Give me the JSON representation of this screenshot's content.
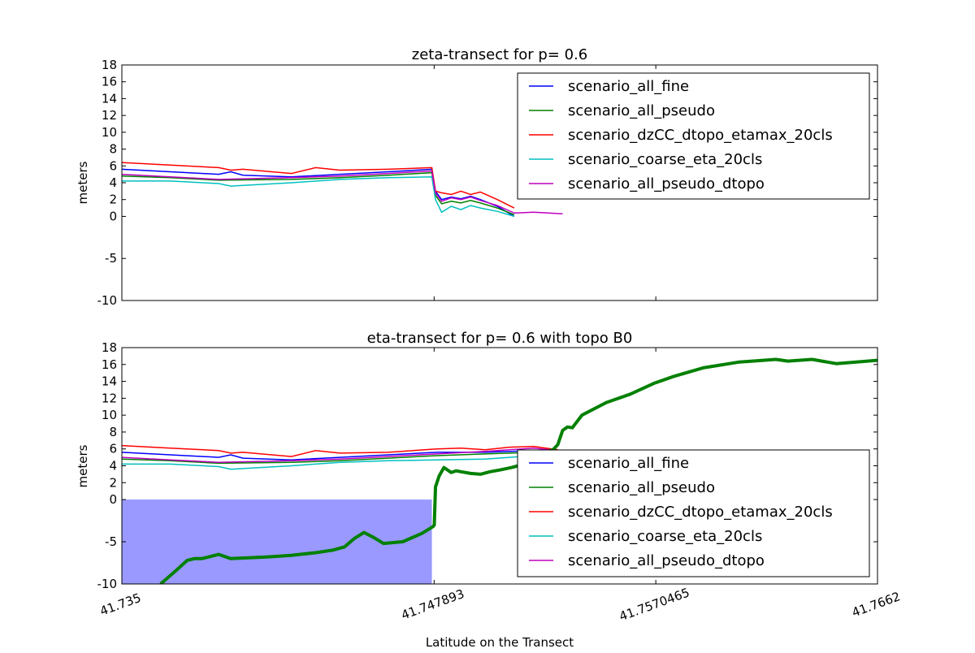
{
  "chart_data": [
    {
      "type": "line",
      "title": "zeta-transect for p= 0.6",
      "ylabel": "meters",
      "xlim": [
        41.735,
        41.7662
      ],
      "ylim": [
        -10,
        18
      ],
      "yticks": [
        "-10",
        "-5",
        "0",
        "2",
        "4",
        "6",
        "8",
        "10",
        "12",
        "14",
        "16",
        "18"
      ],
      "ytick_values": [
        -10,
        -5,
        0,
        2,
        4,
        6,
        8,
        10,
        12,
        14,
        16,
        18
      ],
      "xtick_values": [
        41.735,
        41.747893,
        41.7570465,
        41.7662
      ],
      "legend": "top-right",
      "colors": [
        "#0000ff",
        "#008000",
        "#ff0000",
        "#00bfbf",
        "#bf00bf"
      ],
      "series": [
        {
          "name": "scenario_all_fine",
          "x": [
            41.735,
            41.737,
            41.739,
            41.7395,
            41.74,
            41.742,
            41.744,
            41.746,
            41.7478,
            41.74795,
            41.7482,
            41.7486,
            41.749,
            41.7494,
            41.7498,
            41.7505,
            41.7512
          ],
          "y": [
            5.6,
            5.3,
            5.0,
            5.3,
            4.9,
            4.7,
            5.0,
            5.3,
            5.6,
            3.0,
            2.0,
            2.3,
            2.1,
            2.4,
            2.0,
            1.2,
            0.0
          ]
        },
        {
          "name": "scenario_all_pseudo",
          "x": [
            41.735,
            41.737,
            41.739,
            41.742,
            41.744,
            41.746,
            41.7478,
            41.74795,
            41.7482,
            41.7486,
            41.749,
            41.7494,
            41.7498,
            41.7505,
            41.7512
          ],
          "y": [
            4.8,
            4.6,
            4.3,
            4.4,
            4.6,
            4.9,
            5.2,
            2.5,
            1.5,
            1.8,
            1.6,
            1.9,
            1.6,
            1.0,
            0.2
          ]
        },
        {
          "name": "scenario_dzCC_dtopo_etamax_20cls",
          "x": [
            41.735,
            41.737,
            41.739,
            41.7395,
            41.74,
            41.742,
            41.743,
            41.744,
            41.746,
            41.7478,
            41.74795,
            41.7482,
            41.7486,
            41.749,
            41.7494,
            41.7498,
            41.7505,
            41.7512
          ],
          "y": [
            6.4,
            6.1,
            5.8,
            5.5,
            5.6,
            5.1,
            5.8,
            5.5,
            5.6,
            5.8,
            3.0,
            2.8,
            2.6,
            3.0,
            2.6,
            2.9,
            2.0,
            1.0
          ]
        },
        {
          "name": "scenario_coarse_eta_20cls",
          "x": [
            41.735,
            41.737,
            41.739,
            41.7395,
            41.742,
            41.744,
            41.746,
            41.7478,
            41.74795,
            41.7482,
            41.7486,
            41.749,
            41.7494,
            41.7498,
            41.7505,
            41.7512
          ],
          "y": [
            4.2,
            4.2,
            3.9,
            3.6,
            4.0,
            4.4,
            4.6,
            4.7,
            2.0,
            0.5,
            1.2,
            0.8,
            1.3,
            1.0,
            0.6,
            0.0
          ]
        },
        {
          "name": "scenario_all_pseudo_dtopo",
          "x": [
            41.735,
            41.737,
            41.739,
            41.742,
            41.744,
            41.746,
            41.7478,
            41.74795,
            41.7482,
            41.7486,
            41.749,
            41.7494,
            41.7498,
            41.7505,
            41.7512,
            41.752,
            41.7532
          ],
          "y": [
            5.0,
            4.7,
            4.4,
            4.6,
            4.8,
            5.1,
            5.4,
            2.8,
            1.8,
            2.2,
            2.0,
            2.3,
            1.9,
            1.3,
            0.4,
            0.5,
            0.3
          ]
        }
      ]
    },
    {
      "type": "line",
      "title": "eta-transect for p= 0.6 with topo B0",
      "ylabel": "meters",
      "xlabel": "Latitude on the Transect",
      "xticks": [
        "41.735",
        "41.747893",
        "41.7570465",
        "41.7662"
      ],
      "xtick_values": [
        41.735,
        41.747893,
        41.7570465,
        41.7662
      ],
      "xlim": [
        41.735,
        41.7662
      ],
      "ylim": [
        -10,
        18
      ],
      "yticks": [
        "-10",
        "-5",
        "0",
        "2",
        "4",
        "6",
        "8",
        "10",
        "12",
        "14",
        "16",
        "18"
      ],
      "ytick_values": [
        -10,
        -5,
        0,
        2,
        4,
        6,
        8,
        10,
        12,
        14,
        16,
        18
      ],
      "legend": "bottom-right",
      "colors": [
        "#0000ff",
        "#008000",
        "#ff0000",
        "#00bfbf",
        "#bf00bf"
      ],
      "shade_color": "#9999ff",
      "topo_color": "#008000",
      "series": [
        {
          "name": "scenario_all_fine",
          "x": [
            41.735,
            41.737,
            41.739,
            41.7395,
            41.74,
            41.742,
            41.744,
            41.746,
            41.748,
            41.75,
            41.752,
            41.753
          ],
          "y": [
            5.6,
            5.3,
            5.0,
            5.3,
            4.9,
            4.7,
            5.0,
            5.3,
            5.6,
            5.6,
            5.8,
            5.8
          ]
        },
        {
          "name": "scenario_all_pseudo",
          "x": [
            41.735,
            41.737,
            41.739,
            41.742,
            41.744,
            41.746,
            41.748,
            41.75,
            41.752,
            41.753
          ],
          "y": [
            4.8,
            4.6,
            4.3,
            4.4,
            4.6,
            4.9,
            5.2,
            5.4,
            5.6,
            5.6
          ]
        },
        {
          "name": "scenario_dzCC_dtopo_etamax_20cls",
          "x": [
            41.735,
            41.737,
            41.739,
            41.7395,
            41.74,
            41.742,
            41.743,
            41.744,
            41.746,
            41.748,
            41.749,
            41.75,
            41.751,
            41.752,
            41.753
          ],
          "y": [
            6.4,
            6.1,
            5.8,
            5.5,
            5.6,
            5.1,
            5.8,
            5.5,
            5.6,
            6.0,
            6.1,
            5.9,
            6.2,
            6.3,
            5.9
          ]
        },
        {
          "name": "scenario_coarse_eta_20cls",
          "x": [
            41.735,
            41.737,
            41.739,
            41.7395,
            41.742,
            41.744,
            41.746,
            41.748,
            41.75,
            41.752,
            41.753
          ],
          "y": [
            4.2,
            4.2,
            3.9,
            3.6,
            4.0,
            4.4,
            4.6,
            4.7,
            4.8,
            5.2,
            5.4
          ]
        },
        {
          "name": "scenario_all_pseudo_dtopo",
          "x": [
            41.735,
            41.737,
            41.739,
            41.742,
            41.744,
            41.746,
            41.748,
            41.75,
            41.752,
            41.753
          ],
          "y": [
            5.0,
            4.7,
            4.4,
            4.6,
            4.8,
            5.1,
            5.4,
            5.7,
            6.1,
            5.8
          ]
        }
      ],
      "topo": {
        "x": [
          41.7366,
          41.7372,
          41.7377,
          41.738,
          41.7383,
          41.739,
          41.7395,
          41.741,
          41.742,
          41.743,
          41.7437,
          41.7442,
          41.7446,
          41.745,
          41.7454,
          41.7458,
          41.7466,
          41.7474,
          41.74785,
          41.7479,
          41.74795,
          41.7481,
          41.7483,
          41.7486,
          41.7488,
          41.749,
          41.7494,
          41.7498,
          41.7502,
          41.7506,
          41.7511,
          41.7516,
          41.752,
          41.7524,
          41.7527,
          41.7528,
          41.753,
          41.7532,
          41.7534,
          41.7536,
          41.754,
          41.755,
          41.756,
          41.757,
          41.7578,
          41.759,
          41.7605,
          41.7615,
          41.762,
          41.7625,
          41.7635,
          41.7645,
          41.7662
        ],
        "y": [
          -10.0,
          -8.5,
          -7.2,
          -7.0,
          -7.0,
          -6.5,
          -7.0,
          -6.8,
          -6.6,
          -6.3,
          -6.0,
          -5.6,
          -4.6,
          -3.9,
          -4.5,
          -5.2,
          -5.0,
          -4.0,
          -3.2,
          -3.0,
          1.5,
          2.8,
          3.8,
          3.2,
          3.4,
          3.3,
          3.1,
          3.0,
          3.3,
          3.5,
          3.8,
          4.2,
          5.3,
          5.6,
          5.8,
          5.9,
          6.5,
          8.2,
          8.6,
          8.5,
          10.0,
          11.5,
          12.5,
          13.8,
          14.6,
          15.6,
          16.3,
          16.5,
          16.6,
          16.4,
          16.6,
          16.1,
          16.5
        ]
      },
      "fill_region": {
        "x_from": 41.735,
        "x_to": 41.7478,
        "y_from": -10,
        "y_to": 0
      }
    }
  ]
}
